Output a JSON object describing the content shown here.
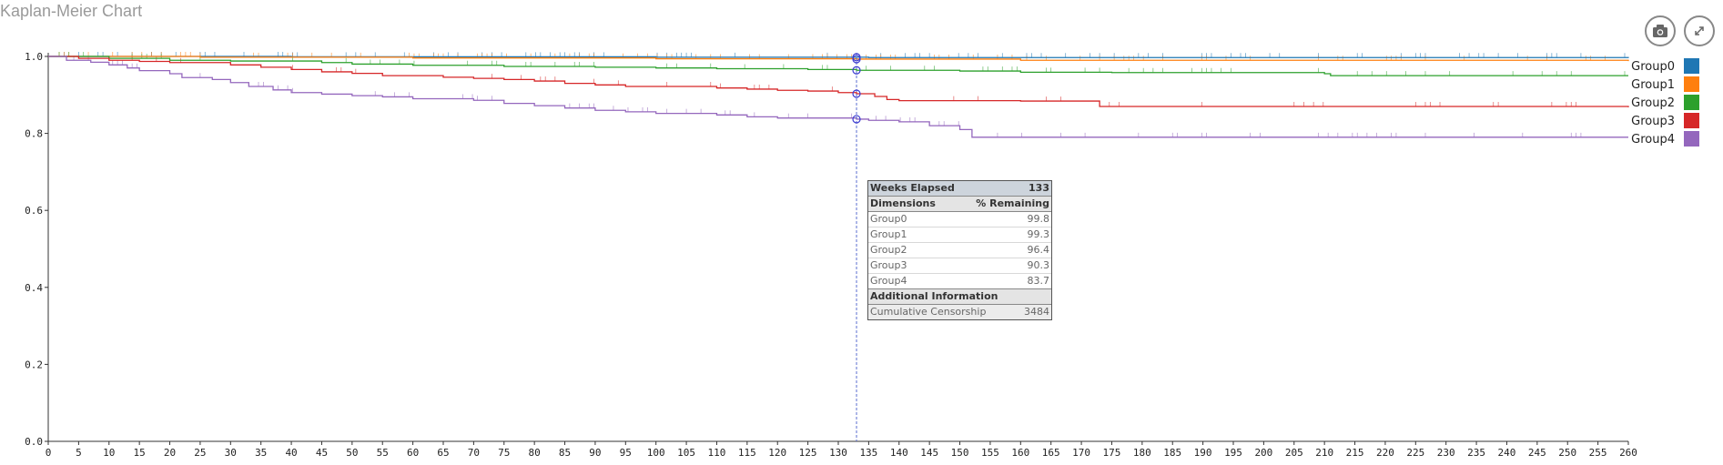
{
  "header": {
    "title": "Kaplan-Meier Chart",
    "camera_icon": "camera-icon",
    "expand_icon": "expand-icon"
  },
  "chart_data": {
    "type": "line",
    "title": "Kaplan-Meier Chart",
    "xlabel": "",
    "ylabel": "",
    "xlim": [
      0,
      260
    ],
    "ylim": [
      0,
      1
    ],
    "x_ticks": [
      0,
      5,
      10,
      15,
      20,
      25,
      30,
      35,
      40,
      45,
      50,
      55,
      60,
      65,
      70,
      75,
      80,
      85,
      90,
      95,
      100,
      105,
      110,
      115,
      120,
      125,
      130,
      135,
      140,
      145,
      150,
      155,
      160,
      165,
      170,
      175,
      180,
      185,
      190,
      195,
      200,
      205,
      210,
      215,
      220,
      225,
      230,
      235,
      240,
      245,
      250,
      255,
      260
    ],
    "y_ticks": [
      "0.0",
      "0.2",
      "0.4",
      "0.6",
      "0.8",
      "1.0"
    ],
    "grid": false,
    "legend_position": "right",
    "hover_x": 133,
    "series": [
      {
        "name": "Group0",
        "color": "#1f77b4",
        "points": [
          [
            0,
            1.0
          ],
          [
            40,
            0.999
          ],
          [
            100,
            0.998
          ],
          [
            135,
            0.997
          ],
          [
            260,
            0.996
          ]
        ]
      },
      {
        "name": "Group1",
        "color": "#ff7f0e",
        "points": [
          [
            0,
            1.0
          ],
          [
            25,
            0.998
          ],
          [
            60,
            0.996
          ],
          [
            100,
            0.994
          ],
          [
            133,
            0.993
          ],
          [
            160,
            0.99
          ],
          [
            260,
            0.988
          ]
        ]
      },
      {
        "name": "Group2",
        "color": "#2ca02c",
        "points": [
          [
            0,
            1.0
          ],
          [
            10,
            0.995
          ],
          [
            20,
            0.99
          ],
          [
            30,
            0.988
          ],
          [
            45,
            0.984
          ],
          [
            50,
            0.98
          ],
          [
            60,
            0.977
          ],
          [
            75,
            0.974
          ],
          [
            90,
            0.972
          ],
          [
            100,
            0.97
          ],
          [
            110,
            0.968
          ],
          [
            125,
            0.966
          ],
          [
            133,
            0.964
          ],
          [
            150,
            0.962
          ],
          [
            160,
            0.959
          ],
          [
            175,
            0.958
          ],
          [
            210,
            0.955
          ],
          [
            211,
            0.95
          ],
          [
            260,
            0.95
          ]
        ]
      },
      {
        "name": "Group3",
        "color": "#d62728",
        "points": [
          [
            0,
            1.0
          ],
          [
            5,
            0.995
          ],
          [
            10,
            0.99
          ],
          [
            15,
            0.987
          ],
          [
            20,
            0.984
          ],
          [
            30,
            0.978
          ],
          [
            35,
            0.972
          ],
          [
            40,
            0.966
          ],
          [
            45,
            0.96
          ],
          [
            50,
            0.956
          ],
          [
            55,
            0.95
          ],
          [
            65,
            0.946
          ],
          [
            70,
            0.943
          ],
          [
            75,
            0.94
          ],
          [
            80,
            0.936
          ],
          [
            85,
            0.93
          ],
          [
            90,
            0.926
          ],
          [
            95,
            0.922
          ],
          [
            100,
            0.922
          ],
          [
            110,
            0.918
          ],
          [
            115,
            0.915
          ],
          [
            120,
            0.912
          ],
          [
            125,
            0.91
          ],
          [
            130,
            0.906
          ],
          [
            133,
            0.903
          ],
          [
            136,
            0.896
          ],
          [
            138,
            0.888
          ],
          [
            140,
            0.885
          ],
          [
            150,
            0.885
          ],
          [
            160,
            0.884
          ],
          [
            172,
            0.884
          ],
          [
            173,
            0.87
          ],
          [
            260,
            0.868
          ]
        ]
      },
      {
        "name": "Group4",
        "color": "#9467bd",
        "points": [
          [
            0,
            1.0
          ],
          [
            3,
            0.99
          ],
          [
            7,
            0.985
          ],
          [
            10,
            0.978
          ],
          [
            13,
            0.97
          ],
          [
            15,
            0.963
          ],
          [
            20,
            0.955
          ],
          [
            22,
            0.945
          ],
          [
            27,
            0.94
          ],
          [
            30,
            0.932
          ],
          [
            33,
            0.922
          ],
          [
            37,
            0.913
          ],
          [
            40,
            0.906
          ],
          [
            45,
            0.902
          ],
          [
            50,
            0.898
          ],
          [
            55,
            0.895
          ],
          [
            60,
            0.89
          ],
          [
            70,
            0.886
          ],
          [
            75,
            0.878
          ],
          [
            80,
            0.872
          ],
          [
            85,
            0.866
          ],
          [
            90,
            0.86
          ],
          [
            95,
            0.856
          ],
          [
            100,
            0.852
          ],
          [
            110,
            0.848
          ],
          [
            115,
            0.843
          ],
          [
            120,
            0.84
          ],
          [
            133,
            0.837
          ],
          [
            135,
            0.834
          ],
          [
            140,
            0.83
          ],
          [
            145,
            0.82
          ],
          [
            150,
            0.81
          ],
          [
            152,
            0.79
          ],
          [
            260,
            0.79
          ]
        ]
      }
    ]
  },
  "tooltip": {
    "header_label": "Weeks Elapsed",
    "header_value": "133",
    "dimensions_label": "Dimensions",
    "dimensions_value": "% Remaining",
    "rows": [
      {
        "label": "Group0",
        "value": "99.8"
      },
      {
        "label": "Group1",
        "value": "99.3"
      },
      {
        "label": "Group2",
        "value": "96.4"
      },
      {
        "label": "Group3",
        "value": "90.3"
      },
      {
        "label": "Group4",
        "value": "83.7"
      }
    ],
    "additional_label": "Additional Information",
    "cumulative_label": "Cumulative Censorship",
    "cumulative_value": "3484"
  }
}
